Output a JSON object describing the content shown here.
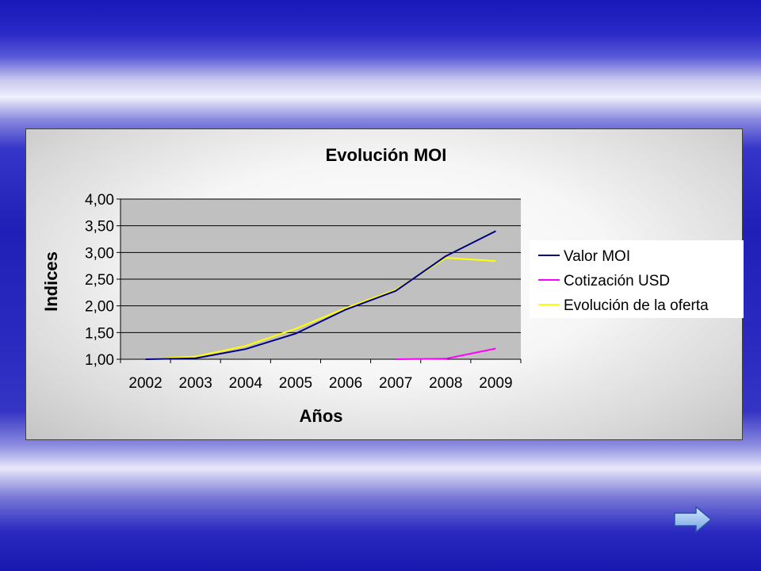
{
  "chart_data": {
    "type": "line",
    "title": "Evolución MOI",
    "xlabel": "Años",
    "ylabel": "Indices",
    "categories": [
      "2002",
      "2003",
      "2004",
      "2005",
      "2006",
      "2007",
      "2008",
      "2009"
    ],
    "y_ticks": [
      "1,00",
      "1,50",
      "2,00",
      "2,50",
      "3,00",
      "3,50",
      "4,00"
    ],
    "ylim": [
      1.0,
      4.0
    ],
    "grid": true,
    "legend_position": "right",
    "series": [
      {
        "name": "Valor MOI",
        "color": "#000080",
        "values": [
          1.0,
          1.02,
          1.19,
          1.48,
          1.93,
          2.28,
          2.93,
          3.4
        ]
      },
      {
        "name": "Cotización USD",
        "color": "#ff00ff",
        "values": [
          null,
          null,
          null,
          null,
          null,
          1.0,
          1.01,
          1.2
        ]
      },
      {
        "name": "Evolución de la oferta",
        "color": "#ffff00",
        "values": [
          1.0,
          1.05,
          1.25,
          1.57,
          1.96,
          2.3,
          2.9,
          2.84
        ]
      }
    ]
  },
  "colors": {
    "plot_area": "#c0c0c0",
    "gridline": "#000000"
  },
  "navigation": {
    "next_icon": "right-arrow-icon"
  }
}
